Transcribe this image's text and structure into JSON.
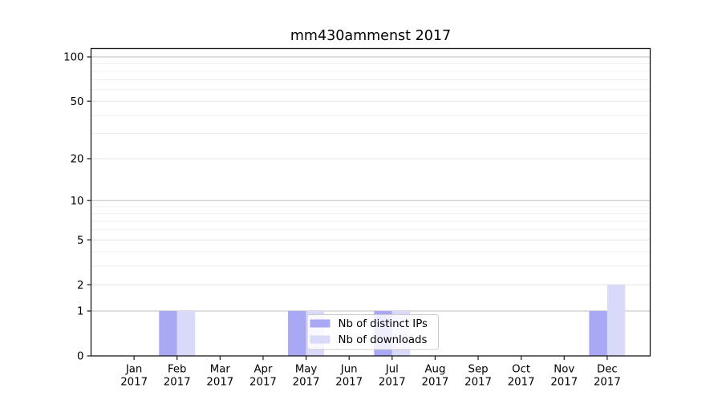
{
  "chart_data": {
    "type": "bar",
    "title": "mm430ammenst 2017",
    "x_months": [
      "Jan",
      "Feb",
      "Mar",
      "Apr",
      "May",
      "Jun",
      "Jul",
      "Aug",
      "Sep",
      "Oct",
      "Nov",
      "Dec"
    ],
    "x_year": "2017",
    "series": [
      {
        "name": "Nb of distinct IPs",
        "color": "#a8a8f5",
        "values": [
          0,
          1,
          0,
          0,
          1,
          0,
          1,
          0,
          0,
          0,
          0,
          1
        ]
      },
      {
        "name": "Nb of downloads",
        "color": "#d9d9f9",
        "values": [
          0,
          1,
          0,
          0,
          1,
          0,
          1,
          0,
          0,
          0,
          0,
          2
        ]
      }
    ],
    "y_scale": "log1p",
    "ylim": [
      0,
      114
    ],
    "y_ticks": [
      0,
      1,
      2,
      5,
      10,
      20,
      50,
      100
    ],
    "y_minor_ticks": [
      3,
      4,
      6,
      7,
      8,
      9,
      30,
      40,
      60,
      70,
      80,
      90
    ],
    "grid": "horizontal",
    "legend_position": "lower-center"
  },
  "colors": {
    "background": "#ffffff",
    "spine": "#1a1a1a",
    "grid_major": "#bdbdbd",
    "grid_mid": "#e4e4e4",
    "grid_minor": "#f0f0f0",
    "legend_border": "#cccccc",
    "legend_background": "rgba(255,255,255,0.8)"
  }
}
